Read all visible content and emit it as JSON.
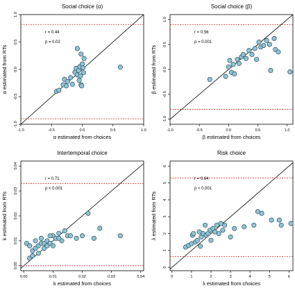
{
  "colors": {
    "point_fill": "#8fc3d6",
    "point_stroke": "#2f4f5a",
    "diagonal": "#000000",
    "bound_line": "#d22a2a",
    "frame": "#000000"
  },
  "chart_data": [
    {
      "type": "scatter",
      "title": "Social choice (α)",
      "xlabel": "α estimated from choices",
      "ylabel": "α estimated from RTs",
      "xlim": [
        -1.0,
        1.0
      ],
      "ylim": [
        -1.0,
        1.0
      ],
      "xticks": [
        -1.0,
        -0.5,
        0.0,
        0.5,
        1.0
      ],
      "xtick_labels": [
        "-1.0",
        "-0.5",
        "0.0",
        "0.5",
        "1.0"
      ],
      "yticks": [
        -1.0,
        -0.5,
        0.0,
        0.5,
        1.0
      ],
      "ytick_labels": [
        "-1.0",
        "-0.5",
        "0.0",
        "0.5",
        "1.0"
      ],
      "annotations": [
        "r = 0.44",
        "p = 0.02"
      ],
      "reference_lines": [
        0.82,
        -0.9
      ],
      "diagonal": true,
      "points": [
        {
          "x": -0.42,
          "y": -0.4
        },
        {
          "x": -0.38,
          "y": -0.38
        },
        {
          "x": -0.31,
          "y": -0.28
        },
        {
          "x": -0.26,
          "y": -0.3
        },
        {
          "x": -0.29,
          "y": -0.18
        },
        {
          "x": -0.24,
          "y": -0.22
        },
        {
          "x": -0.19,
          "y": -0.15
        },
        {
          "x": -0.16,
          "y": -0.27
        },
        {
          "x": -0.12,
          "y": -0.05
        },
        {
          "x": -0.1,
          "y": 0.02
        },
        {
          "x": -0.08,
          "y": -0.1
        },
        {
          "x": -0.06,
          "y": -0.02
        },
        {
          "x": -0.05,
          "y": -0.2
        },
        {
          "x": -0.04,
          "y": 0.05
        },
        {
          "x": -0.03,
          "y": -0.12
        },
        {
          "x": -0.02,
          "y": -0.28
        },
        {
          "x": -0.01,
          "y": -0.3
        },
        {
          "x": 0.0,
          "y": 0.1
        },
        {
          "x": 0.01,
          "y": 0.03
        },
        {
          "x": 0.02,
          "y": -0.06
        },
        {
          "x": 0.03,
          "y": 0.2
        },
        {
          "x": -0.08,
          "y": 0.38
        },
        {
          "x": -0.02,
          "y": 0.28
        },
        {
          "x": 0.62,
          "y": 0.04
        }
      ]
    },
    {
      "type": "scatter",
      "title": "Social choice (β)",
      "xlabel": "β estimated from choices",
      "ylabel": "β estimated from RTs",
      "xlim": [
        -1.0,
        1.1
      ],
      "ylim": [
        -1.1,
        1.1
      ],
      "xticks": [
        -1.0,
        -0.5,
        0.0,
        0.5,
        1.0
      ],
      "xtick_labels": [
        "-1.0",
        "-0.5",
        "0.0",
        "0.5",
        "1.0"
      ],
      "yticks": [
        -1.0,
        -0.5,
        0.0,
        0.5,
        1.0
      ],
      "ytick_labels": [
        "-1.0",
        "-0.5",
        "0.0",
        "0.5",
        "1.0"
      ],
      "annotations": [
        "r = 0.56",
        "p = 0.001"
      ],
      "reference_lines": [
        0.9,
        -0.8
      ],
      "diagonal": true,
      "points": [
        {
          "x": -0.32,
          "y": -0.2
        },
        {
          "x": -0.05,
          "y": -0.14
        },
        {
          "x": 0.0,
          "y": 0.05
        },
        {
          "x": 0.02,
          "y": 0.18
        },
        {
          "x": 0.05,
          "y": -0.06
        },
        {
          "x": 0.08,
          "y": 0.1
        },
        {
          "x": 0.1,
          "y": -0.09
        },
        {
          "x": 0.15,
          "y": 0.2
        },
        {
          "x": 0.18,
          "y": 0.12
        },
        {
          "x": 0.22,
          "y": 0.25
        },
        {
          "x": 0.25,
          "y": 0.3
        },
        {
          "x": 0.3,
          "y": 0.22
        },
        {
          "x": 0.35,
          "y": 0.38
        },
        {
          "x": 0.4,
          "y": 0.3
        },
        {
          "x": 0.45,
          "y": 0.42
        },
        {
          "x": 0.48,
          "y": 0.2
        },
        {
          "x": 0.52,
          "y": 0.55
        },
        {
          "x": 0.55,
          "y": 0.45
        },
        {
          "x": 0.6,
          "y": 0.48
        },
        {
          "x": 0.65,
          "y": 0.58
        },
        {
          "x": 0.7,
          "y": 0.5
        },
        {
          "x": 0.72,
          "y": -0.02
        },
        {
          "x": 0.78,
          "y": 0.62
        },
        {
          "x": 0.8,
          "y": 0.4
        },
        {
          "x": 0.85,
          "y": 0.35
        },
        {
          "x": 1.05,
          "y": -0.05
        }
      ]
    },
    {
      "type": "scatter",
      "title": "Intertemporal choice",
      "xlabel": "k estimated from choices",
      "ylabel": "k estimated from RTs",
      "xlim": [
        -0.001,
        0.041
      ],
      "ylim": [
        -0.002,
        0.042
      ],
      "xticks": [
        0.0,
        0.01,
        0.02,
        0.03,
        0.04
      ],
      "xtick_labels": [
        "0.00",
        "0.01",
        "0.02",
        "0.03",
        "0.04"
      ],
      "yticks": [
        0.0,
        0.01,
        0.02,
        0.03,
        0.04
      ],
      "ytick_labels": [
        "0.00",
        "0.01",
        "0.02",
        "0.03",
        "0.04"
      ],
      "annotations": [
        "r = 0.71",
        "p < 0.001"
      ],
      "reference_lines": [
        0.033,
        0.0
      ],
      "diagonal": true,
      "points": [
        {
          "x": 0.001,
          "y": 0.009
        },
        {
          "x": 0.002,
          "y": 0.008
        },
        {
          "x": 0.002,
          "y": 0.003
        },
        {
          "x": 0.003,
          "y": 0.006
        },
        {
          "x": 0.004,
          "y": 0.01
        },
        {
          "x": 0.004,
          "y": 0.007
        },
        {
          "x": 0.005,
          "y": 0.008
        },
        {
          "x": 0.005,
          "y": 0.005
        },
        {
          "x": 0.006,
          "y": 0.009
        },
        {
          "x": 0.006,
          "y": 0.011
        },
        {
          "x": 0.007,
          "y": 0.007
        },
        {
          "x": 0.007,
          "y": 0.009
        },
        {
          "x": 0.008,
          "y": 0.008
        },
        {
          "x": 0.008,
          "y": 0.01
        },
        {
          "x": 0.009,
          "y": 0.009
        },
        {
          "x": 0.01,
          "y": 0.012
        },
        {
          "x": 0.01,
          "y": 0.008
        },
        {
          "x": 0.011,
          "y": 0.011
        },
        {
          "x": 0.012,
          "y": 0.013
        },
        {
          "x": 0.013,
          "y": 0.01
        },
        {
          "x": 0.014,
          "y": 0.014
        },
        {
          "x": 0.015,
          "y": 0.012
        },
        {
          "x": 0.016,
          "y": 0.012
        },
        {
          "x": 0.018,
          "y": 0.011
        },
        {
          "x": 0.02,
          "y": 0.012
        },
        {
          "x": 0.022,
          "y": 0.021
        },
        {
          "x": 0.024,
          "y": 0.011
        },
        {
          "x": 0.026,
          "y": 0.015
        },
        {
          "x": 0.033,
          "y": 0.012
        },
        {
          "x": 0.012,
          "y": 0.011
        },
        {
          "x": 0.009,
          "y": 0.012
        },
        {
          "x": 0.003,
          "y": 0.004
        }
      ]
    },
    {
      "type": "scatter",
      "title": "Risk choice",
      "xlabel": "λ estimated from choices",
      "ylabel": "λ estimated from RTs",
      "xlim": [
        -0.1,
        6.2
      ],
      "ylim": [
        -0.2,
        6.3
      ],
      "xticks": [
        0,
        1,
        2,
        3,
        4,
        5,
        6
      ],
      "xtick_labels": [
        "0",
        "1",
        "2",
        "3",
        "4",
        "5",
        "6"
      ],
      "yticks": [
        0,
        1,
        2,
        3,
        4,
        5,
        6
      ],
      "ytick_labels": [
        "0",
        "1",
        "2",
        "3",
        "4",
        "5",
        "6"
      ],
      "annotations": [
        "r = 0.64",
        "p < 0.001"
      ],
      "reference_lines": [
        5.3,
        0.65
      ],
      "diagonal": true,
      "points": [
        {
          "x": 0.7,
          "y": 1.2
        },
        {
          "x": 0.85,
          "y": 1.3
        },
        {
          "x": 1.0,
          "y": 1.4
        },
        {
          "x": 1.05,
          "y": 1.9
        },
        {
          "x": 1.1,
          "y": 2.0
        },
        {
          "x": 1.2,
          "y": 1.5
        },
        {
          "x": 1.3,
          "y": 1.6
        },
        {
          "x": 1.4,
          "y": 2.1
        },
        {
          "x": 1.45,
          "y": 1.25
        },
        {
          "x": 1.5,
          "y": 1.8
        },
        {
          "x": 1.6,
          "y": 2.0
        },
        {
          "x": 1.7,
          "y": 2.5
        },
        {
          "x": 1.75,
          "y": 1.9
        },
        {
          "x": 1.85,
          "y": 2.0
        },
        {
          "x": 1.95,
          "y": 2.2
        },
        {
          "x": 2.0,
          "y": 1.6
        },
        {
          "x": 2.1,
          "y": 2.3
        },
        {
          "x": 2.2,
          "y": 2.1
        },
        {
          "x": 2.3,
          "y": 2.5
        },
        {
          "x": 2.4,
          "y": 2.0
        },
        {
          "x": 2.5,
          "y": 2.6
        },
        {
          "x": 2.6,
          "y": 2.2
        },
        {
          "x": 2.7,
          "y": 2.5
        },
        {
          "x": 3.0,
          "y": 1.8
        },
        {
          "x": 3.2,
          "y": 2.3
        },
        {
          "x": 3.7,
          "y": 2.4
        },
        {
          "x": 4.2,
          "y": 2.5
        },
        {
          "x": 4.4,
          "y": 3.3
        },
        {
          "x": 4.6,
          "y": 3.2
        },
        {
          "x": 5.1,
          "y": 2.8
        },
        {
          "x": 5.5,
          "y": 2.8
        },
        {
          "x": 5.6,
          "y": 2.5
        },
        {
          "x": 6.1,
          "y": 2.6
        }
      ]
    }
  ]
}
